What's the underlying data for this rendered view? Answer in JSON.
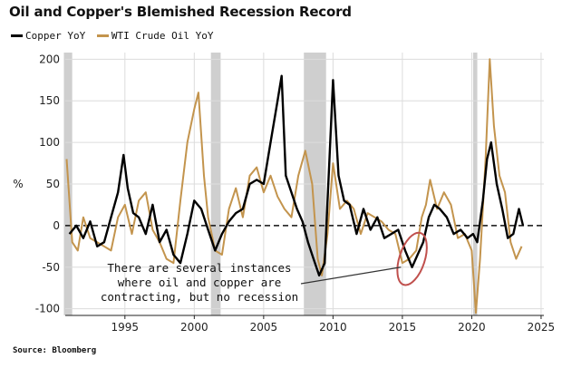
{
  "chart_data": {
    "type": "line",
    "title": "Oil and Copper's Blemished Recession Record",
    "ylabel": "%",
    "xlabel": "",
    "xlim": [
      1990.7,
      2025.2
    ],
    "ylim": [
      -108,
      208
    ],
    "x_ticks": [
      1995,
      2000,
      2005,
      2010,
      2015,
      2020,
      2025
    ],
    "y_ticks": [
      -100,
      -50,
      0,
      50,
      100,
      150,
      200
    ],
    "grid": true,
    "legend_position": "top-left",
    "zero_line": "dashed",
    "recession_bands": [
      [
        1990.6,
        1991.2
      ],
      [
        2001.2,
        2001.9
      ],
      [
        2007.9,
        2009.5
      ],
      [
        2020.1,
        2020.4
      ]
    ],
    "series": [
      {
        "name": "Copper YoY",
        "color": "#000000",
        "x": [
          1991.0,
          1991.5,
          1992.0,
          1992.5,
          1993.0,
          1993.5,
          1994.0,
          1994.5,
          1994.9,
          1995.2,
          1995.6,
          1996.0,
          1996.5,
          1997.0,
          1997.5,
          1998.0,
          1998.5,
          1999.0,
          1999.5,
          2000.0,
          2000.5,
          2001.0,
          2001.5,
          2002.0,
          2002.5,
          2003.0,
          2003.5,
          2004.0,
          2004.5,
          2005.0,
          2005.5,
          2006.0,
          2006.3,
          2006.6,
          2007.0,
          2007.4,
          2007.8,
          2008.2,
          2008.6,
          2009.0,
          2009.4,
          2009.8,
          2010.0,
          2010.4,
          2010.8,
          2011.2,
          2011.7,
          2012.2,
          2012.7,
          2013.2,
          2013.7,
          2014.2,
          2014.7,
          2015.2,
          2015.7,
          2016.1,
          2016.5,
          2016.9,
          2017.3,
          2017.7,
          2018.2,
          2018.7,
          2019.2,
          2019.7,
          2020.1,
          2020.4,
          2020.8,
          2021.1,
          2021.4,
          2021.8,
          2022.2,
          2022.6,
          2023.0,
          2023.4,
          2023.7
        ],
        "values": [
          -10,
          0,
          -15,
          5,
          -25,
          -20,
          10,
          40,
          85,
          45,
          15,
          10,
          -10,
          25,
          -20,
          -5,
          -35,
          -45,
          -10,
          30,
          20,
          -5,
          -30,
          -10,
          5,
          15,
          20,
          50,
          55,
          50,
          100,
          150,
          180,
          60,
          40,
          20,
          5,
          -20,
          -40,
          -60,
          -45,
          100,
          175,
          60,
          30,
          25,
          -10,
          20,
          -5,
          10,
          -15,
          -10,
          -5,
          -30,
          -50,
          -35,
          -20,
          10,
          25,
          20,
          10,
          -10,
          -5,
          -15,
          -10,
          -20,
          30,
          80,
          100,
          50,
          20,
          -15,
          -10,
          20,
          0
        ]
      },
      {
        "name": "WTI Crude Oil YoY",
        "color": "#c3944d",
        "x": [
          1990.8,
          1991.2,
          1991.6,
          1992.0,
          1992.5,
          1993.0,
          1993.5,
          1994.0,
          1994.5,
          1995.0,
          1995.5,
          1996.0,
          1996.5,
          1997.0,
          1997.5,
          1998.0,
          1998.5,
          1999.0,
          1999.5,
          2000.0,
          2000.3,
          2000.7,
          2001.0,
          2001.5,
          2002.0,
          2002.5,
          2003.0,
          2003.5,
          2004.0,
          2004.5,
          2005.0,
          2005.5,
          2006.0,
          2006.5,
          2007.0,
          2007.5,
          2008.0,
          2008.5,
          2008.9,
          2009.2,
          2009.6,
          2010.0,
          2010.5,
          2011.0,
          2011.5,
          2012.0,
          2012.5,
          2013.0,
          2013.5,
          2014.0,
          2014.5,
          2015.0,
          2015.5,
          2016.0,
          2016.4,
          2016.7,
          2017.0,
          2017.5,
          2018.0,
          2018.5,
          2019.0,
          2019.5,
          2020.0,
          2020.3,
          2020.6,
          2021.0,
          2021.3,
          2021.6,
          2022.0,
          2022.4,
          2022.8,
          2023.2,
          2023.6
        ],
        "values": [
          80,
          -20,
          -30,
          10,
          -15,
          -20,
          -25,
          -30,
          10,
          25,
          -10,
          30,
          40,
          -5,
          -20,
          -40,
          -45,
          30,
          100,
          140,
          160,
          60,
          10,
          -30,
          -35,
          20,
          45,
          10,
          60,
          70,
          40,
          60,
          35,
          20,
          10,
          60,
          90,
          50,
          -40,
          -60,
          -10,
          75,
          20,
          30,
          20,
          -10,
          15,
          10,
          5,
          -5,
          -10,
          -45,
          -40,
          -30,
          10,
          25,
          55,
          20,
          40,
          25,
          -15,
          -10,
          -30,
          -105,
          -40,
          80,
          200,
          120,
          60,
          40,
          -20,
          -40,
          -25
        ]
      }
    ],
    "annotation": {
      "lines": [
        "There are several instances",
        "where oil and copper are",
        "contracting, but no recession"
      ],
      "highlight": {
        "x": 2015.7,
        "y": -40
      },
      "arrow_to": {
        "x": 2014.9,
        "y": -50
      }
    }
  },
  "source": "Source: Bloomberg"
}
